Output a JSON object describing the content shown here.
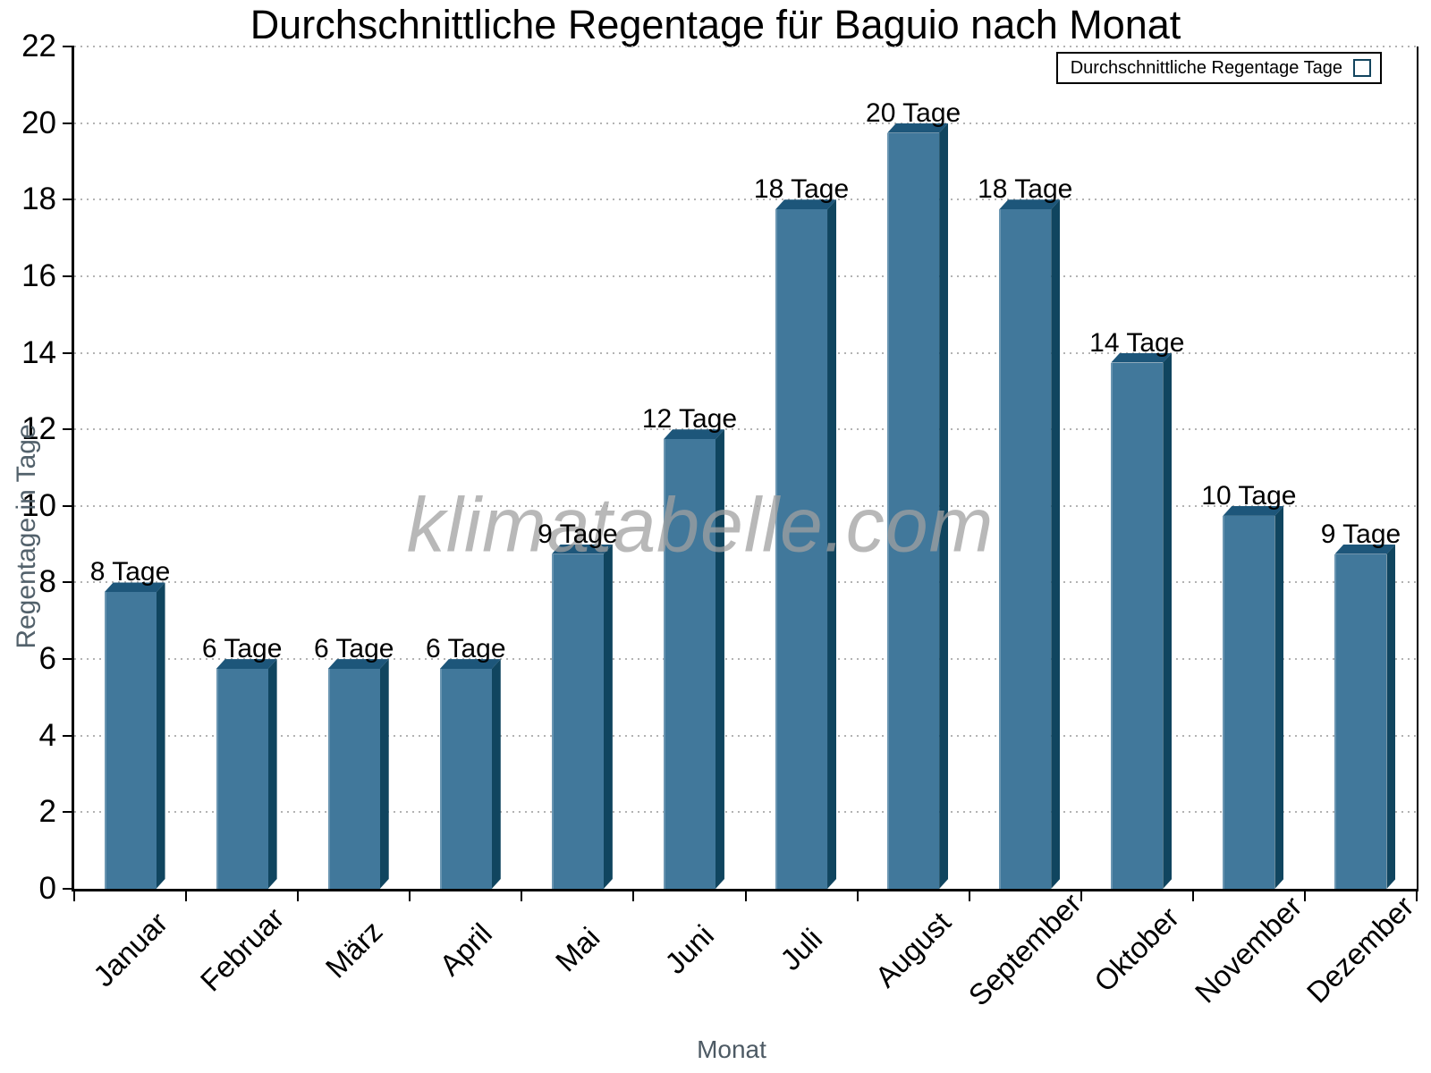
{
  "chart_data": {
    "type": "bar",
    "title": "Durchschnittliche Regentage für Baguio nach Monat",
    "categories": [
      "Januar",
      "Februar",
      "März",
      "April",
      "Mai",
      "Juni",
      "Juli",
      "August",
      "September",
      "Oktober",
      "November",
      "Dezember"
    ],
    "values": [
      8,
      6,
      6,
      6,
      9,
      12,
      18,
      20,
      18,
      14,
      10,
      9
    ],
    "bar_labels": [
      "8 Tage",
      "6 Tage",
      "6 Tage",
      "6 Tage",
      "9 Tage",
      "12 Tage",
      "18 Tage",
      "20 Tage",
      "18 Tage",
      "14 Tage",
      "10 Tage",
      "9 Tage"
    ],
    "xlabel": "Monat",
    "ylabel": "Regentage in Tage",
    "ylim": [
      0,
      22
    ],
    "ytick_step": 2,
    "yticks": [
      0,
      2,
      4,
      6,
      8,
      10,
      12,
      14,
      16,
      18,
      20,
      22
    ],
    "grid": "dotted-horizontal",
    "legend": {
      "label": "Durchschnittliche Regentage Tage",
      "position": "top-right"
    },
    "watermark": "klimatabelle.com",
    "colors": {
      "bar_face": "#41789b",
      "bar_side": "#10455f",
      "bar_top": "#1d567a",
      "grid": "#b3b3b3",
      "axis": "#000000",
      "axis_title_text": "#52616b",
      "watermark": "#a0a0a0"
    }
  }
}
